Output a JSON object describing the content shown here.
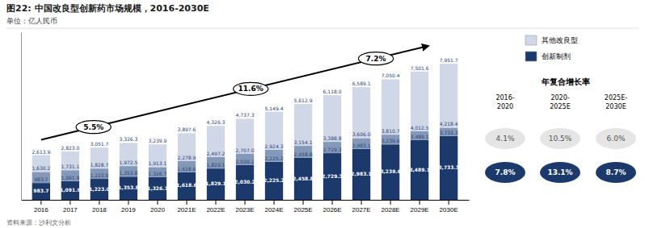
{
  "chart_data": {
    "type": "bar",
    "stacked": true,
    "data_labels": true,
    "tick_labels": "x",
    "grid": false,
    "title": "图22: 中国改良型创新药市场规模，2016-2030E",
    "subtitle": "单位：亿人民币",
    "source": "资料来源：沙利文分析",
    "categories": [
      "2016",
      "2017",
      "2018",
      "2019",
      "2020",
      "2021E",
      "2022E",
      "2023E",
      "2024E",
      "2025E",
      "2026E",
      "2027E",
      "2028E",
      "2029E",
      "2030E"
    ],
    "ylim": [
      0,
      9800
    ],
    "series": [
      {
        "name": "创新制剂",
        "color": "#1b3a6b",
        "values": [
          983.7,
          1091.9,
          1223.0,
          1353.8,
          1326.7,
          1618.6,
          1829.1,
          2030.2,
          2225.2,
          2458.8,
          2729.3,
          2983.1,
          3239.6,
          3489.1,
          3733.3
        ],
        "value_labels": [
          "983.7",
          "1,091.9",
          "1,223.0",
          "1,353.8",
          "1,326.7",
          "1,618.6",
          "1,829.1",
          "2,030.2",
          "2,225.2",
          "2,458.8",
          "2,729.3",
          "2,983.1",
          "3,239.6",
          "3,489.1",
          "3,733.3"
        ]
      },
      {
        "color": "#8499b8",
        "values": [
          646.5,
          639.2,
          605.7,
          618.7,
          586.4,
          660.3,
          668.1,
          676.8,
          699.1,
          695.3,
          659.5,
          622.9,
          571.1,
          523.4,
          485.1
        ],
        "top_values": [
          1630.2,
          1731.1,
          1828.7,
          1972.5,
          1913.1,
          2278.9,
          2497.2,
          2707.0,
          2924.3,
          3154.1,
          3388.8,
          3606.0,
          3810.7,
          4012.5,
          4218.4
        ],
        "top_labels": [
          "1,630.2",
          "1,731.1",
          "1,828.7",
          "1,972.5",
          "1,913.1",
          "2,278.9",
          "2,497.2",
          "2,707.0",
          "2,924.3",
          "3,154.1",
          "3,388.8",
          "3,606.0",
          "3,810.7",
          "4,012.5",
          "4,218.4"
        ]
      },
      {
        "name": "其他改良型",
        "color": "#d0d8e8",
        "values": [
          983.7,
          1091.9,
          1223.0,
          1353.8,
          1326.8,
          1618.7,
          1829.1,
          2030.3,
          2225.1,
          2458.8,
          2729.2,
          2983.1,
          3239.7,
          3489.1,
          3733.3
        ],
        "top_values": [
          2613.9,
          2823.0,
          3051.7,
          3326.3,
          3239.9,
          3897.6,
          4326.3,
          4737.3,
          5149.4,
          5612.9,
          6118.0,
          6589.1,
          7050.4,
          7501.6,
          7951.7
        ],
        "top_labels": [
          "2,613.9",
          "2,823.0",
          "3,051.7",
          "3,326.3",
          "3,239.9",
          "3,897.6",
          "4,326.3",
          "4,737.3",
          "5,149.4",
          "5,612.9",
          "6,118.0",
          "6,589.1",
          "7,050.4",
          "7,501.6",
          "7,951.7"
        ]
      }
    ],
    "annotations": [
      "5.5%",
      "11.6%",
      "7.2%"
    ],
    "cagr": {
      "title": "年复合增长率",
      "periods": [
        "2016-\n2020",
        "2020-\n2025E",
        "2025E-\n2030E"
      ],
      "series": [
        {
          "color": "#e5e5e5",
          "values": [
            4.1,
            10.5,
            6.0
          ],
          "value_labels": [
            "4.1%",
            "10.5%",
            "6.0%"
          ]
        },
        {
          "color": "#1b3a6b",
          "values": [
            7.8,
            13.1,
            8.7
          ],
          "value_labels": [
            "7.8%",
            "13.1%",
            "8.7%"
          ]
        }
      ]
    }
  }
}
